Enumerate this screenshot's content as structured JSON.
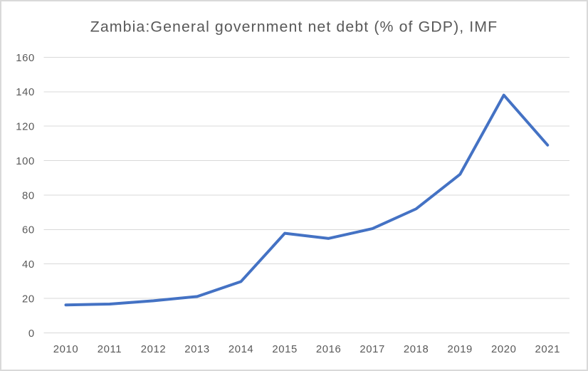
{
  "chart_data": {
    "type": "line",
    "title": "Zambia:General government net debt (% of GDP), IMF",
    "categories": [
      "2010",
      "2011",
      "2012",
      "2013",
      "2014",
      "2015",
      "2016",
      "2017",
      "2018",
      "2019",
      "2020",
      "2021"
    ],
    "values": [
      16.2,
      16.7,
      18.6,
      21.1,
      29.8,
      57.8,
      54.8,
      60.5,
      72,
      92,
      138,
      109
    ],
    "xlabel": "",
    "ylabel": "",
    "ylim": [
      0,
      160
    ],
    "ytick_step": 20,
    "yticks": [
      0,
      20,
      40,
      60,
      80,
      100,
      120,
      140,
      160
    ],
    "grid": true,
    "legend_position": "none",
    "colors": {
      "line": "#4472C4",
      "grid": "#D9D9D9",
      "text": "#595959",
      "background": "#FFFFFF",
      "frame_border": "#D9D9D9"
    },
    "line_width": 4
  }
}
